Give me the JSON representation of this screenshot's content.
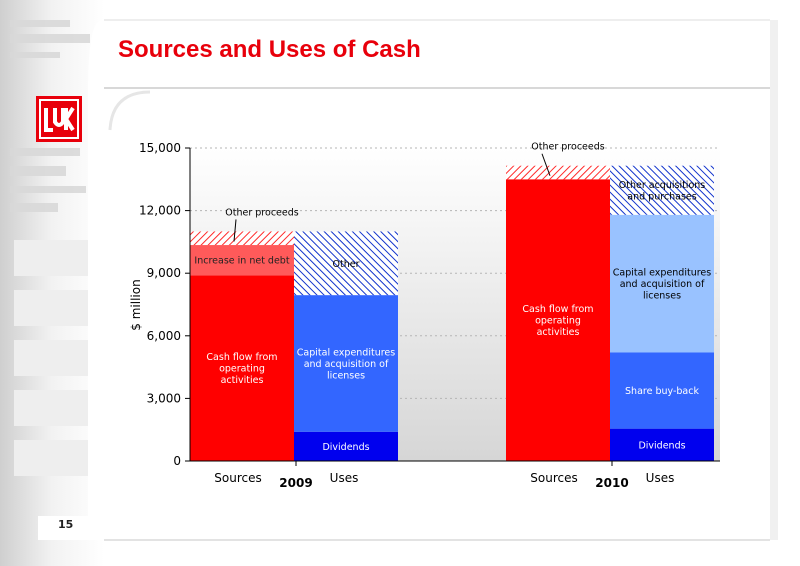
{
  "slide": {
    "title": "Sources and Uses of Cash",
    "page_number": "15",
    "colors": {
      "title": "#e8000b",
      "brand_red": "#ff0000"
    }
  },
  "logo": {
    "icon": "lukoil-logo-icon",
    "text": "ЛУК"
  },
  "chart_data": {
    "type": "bar",
    "subtype": "stacked",
    "ylabel": "$ million",
    "ylim": [
      0,
      15000
    ],
    "yticks": [
      0,
      3000,
      6000,
      9000,
      12000,
      15000
    ],
    "ytick_labels": [
      "0",
      "3,000",
      "6,000",
      "9,000",
      "12,000",
      "15,000"
    ],
    "grid": true,
    "groups": [
      {
        "year": "2009",
        "bars": [
          {
            "category": "Sources",
            "segments": [
              {
                "label": "Cash flow from operating activities",
                "lines": [
                  "Cash flow from",
                  "operating",
                  "activities"
                ],
                "value": 8900,
                "fill": "#ff0000",
                "pattern": "solid",
                "label_color": "#ffffff"
              },
              {
                "label": "Increase in net debt",
                "lines": [
                  "Increase in net debt"
                ],
                "value": 1450,
                "fill": "#ff5a5a",
                "pattern": "solid",
                "label_color": "#222222"
              },
              {
                "label": "Other proceeds",
                "lines": [
                  "Other proceeds"
                ],
                "value": 650,
                "fill": "#ff4444",
                "pattern": "hatch",
                "label_color": "#000000",
                "callout": true
              }
            ]
          },
          {
            "category": "Uses",
            "segments": [
              {
                "label": "Dividends",
                "lines": [
                  "Dividends"
                ],
                "value": 1400,
                "fill": "#0000ee",
                "pattern": "solid",
                "label_color": "#ffffff"
              },
              {
                "label": "Capital expenditures and acquisition of licenses",
                "lines": [
                  "Capital expenditures",
                  "and acquisition of",
                  "licenses"
                ],
                "value": 6550,
                "fill": "#3366ff",
                "pattern": "solid",
                "label_color": "#ffffff"
              },
              {
                "label": "Other",
                "lines": [
                  "Other"
                ],
                "value": 3050,
                "fill": "#1133cc",
                "pattern": "hatch",
                "label_color": "#000000"
              }
            ]
          }
        ]
      },
      {
        "year": "2010",
        "bars": [
          {
            "category": "Sources",
            "segments": [
              {
                "label": "Cash flow from operating activities",
                "lines": [
                  "Cash flow from",
                  "operating",
                  "activities"
                ],
                "value": 13500,
                "fill": "#ff0000",
                "pattern": "solid",
                "label_color": "#ffffff"
              },
              {
                "label": "Other proceeds",
                "lines": [
                  "Other proceeds"
                ],
                "value": 650,
                "fill": "#ff4444",
                "pattern": "hatch",
                "label_color": "#000000",
                "callout": true
              }
            ]
          },
          {
            "category": "Uses",
            "segments": [
              {
                "label": "Dividends",
                "lines": [
                  "Dividends"
                ],
                "value": 1550,
                "fill": "#0000ee",
                "pattern": "solid",
                "label_color": "#ffffff"
              },
              {
                "label": "Share buy-back",
                "lines": [
                  "Share buy-back"
                ],
                "value": 3650,
                "fill": "#3366ff",
                "pattern": "solid",
                "label_color": "#ffffff"
              },
              {
                "label": "Capital expenditures and acquisition of licenses",
                "lines": [
                  "Capital expenditures",
                  "and acquisition of",
                  "licenses"
                ],
                "value": 6600,
                "fill": "#99c2ff",
                "pattern": "solid",
                "label_color": "#000000"
              },
              {
                "label": "Other acquisitions and purchases",
                "lines": [
                  "Other acquisitions",
                  "and purchases"
                ],
                "value": 2350,
                "fill": "#2255ee",
                "pattern": "hatch",
                "label_color": "#000000"
              }
            ]
          }
        ]
      }
    ]
  }
}
